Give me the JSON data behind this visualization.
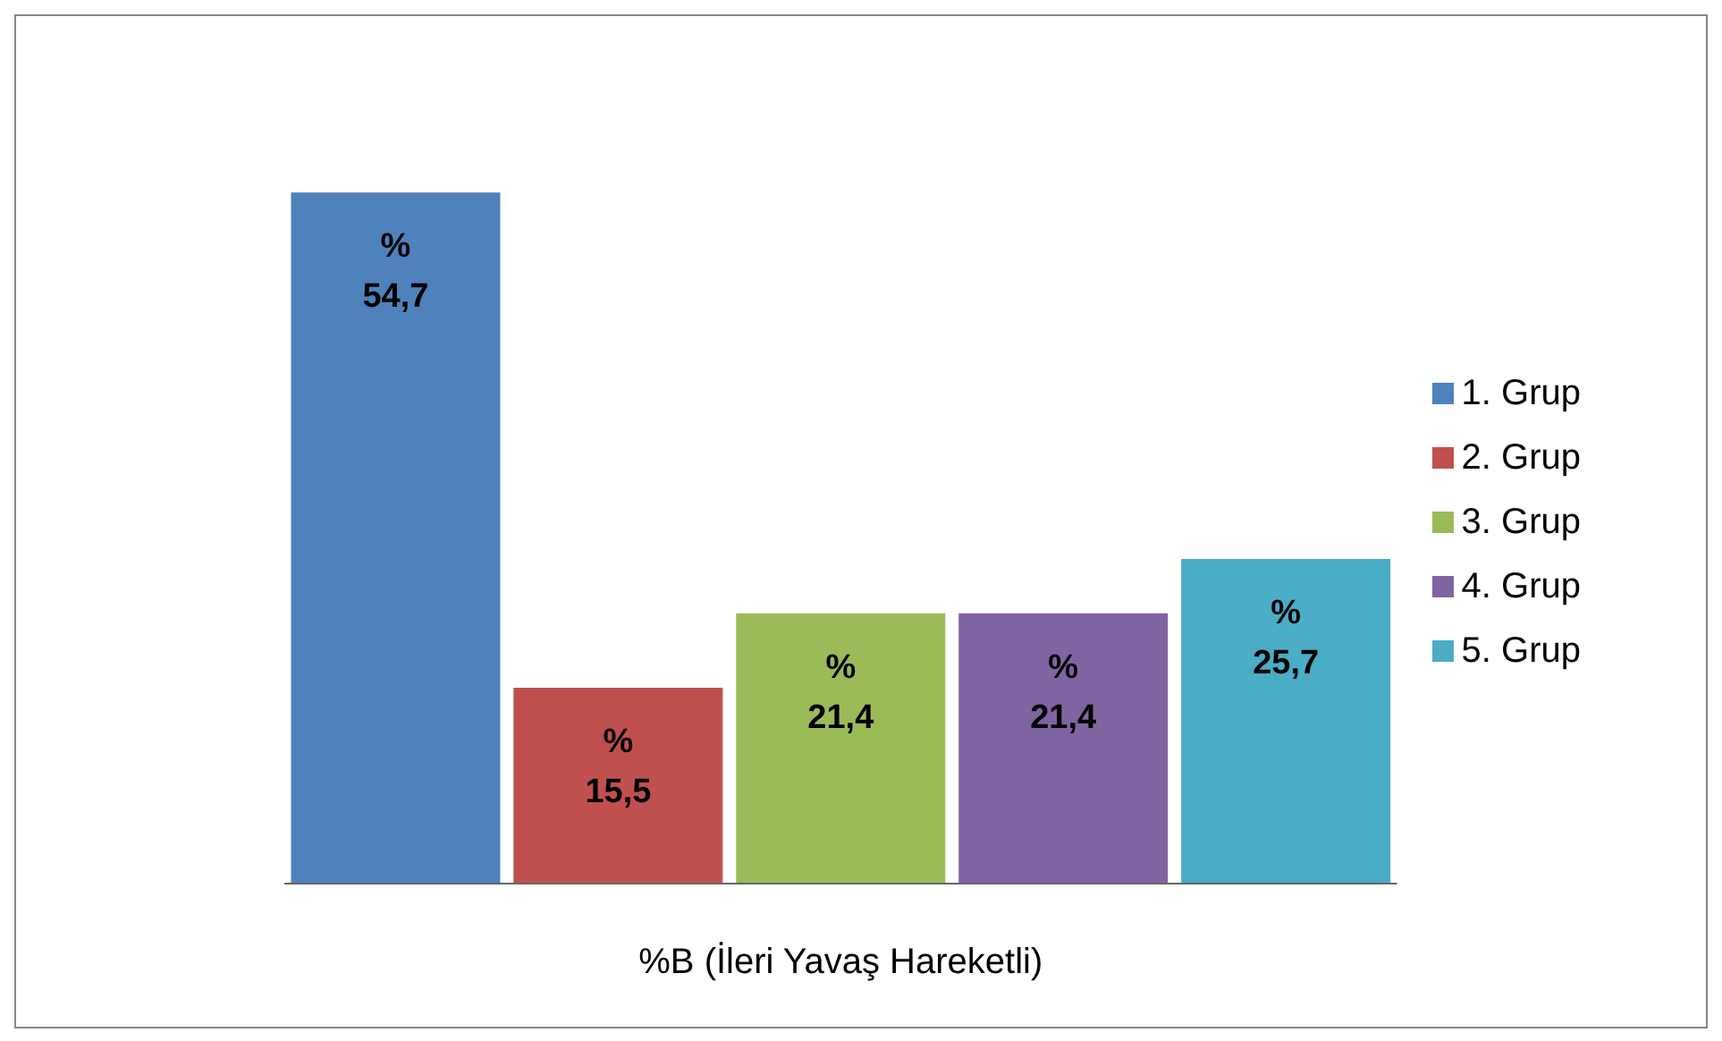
{
  "chart_data": {
    "type": "bar",
    "xlabel": "%B (İleri Yavaş Hareketli)",
    "categories": [
      null,
      null,
      null,
      null,
      null
    ],
    "stacked": true,
    "series": [
      {
        "name": "1. Grup",
        "color": "#4f81bd",
        "values": [
          54.7,
          null,
          null,
          null,
          null
        ],
        "value_labels": [
          "% 54,7",
          null,
          null,
          null,
          null
        ]
      },
      {
        "name": "2. Grup",
        "color": "#c0504d",
        "values": [
          null,
          15.5,
          null,
          null,
          null
        ],
        "value_labels": [
          null,
          "% 15,5",
          null,
          null,
          null
        ]
      },
      {
        "name": "3. Grup",
        "color": "#9bbb59",
        "values": [
          null,
          null,
          21.4,
          null,
          null
        ],
        "value_labels": [
          null,
          null,
          "% 21,4",
          null,
          null
        ]
      },
      {
        "name": "4. Grup",
        "color": "#8064a2",
        "values": [
          null,
          null,
          null,
          21.4,
          null
        ],
        "value_labels": [
          null,
          null,
          null,
          "% 21,4",
          null
        ]
      },
      {
        "name": "5. Grup",
        "color": "#4bacc6",
        "values": [
          null,
          null,
          null,
          null,
          25.7
        ],
        "value_labels": [
          null,
          null,
          null,
          null,
          "% 25,7"
        ]
      }
    ],
    "legend": "right",
    "grid": false
  }
}
